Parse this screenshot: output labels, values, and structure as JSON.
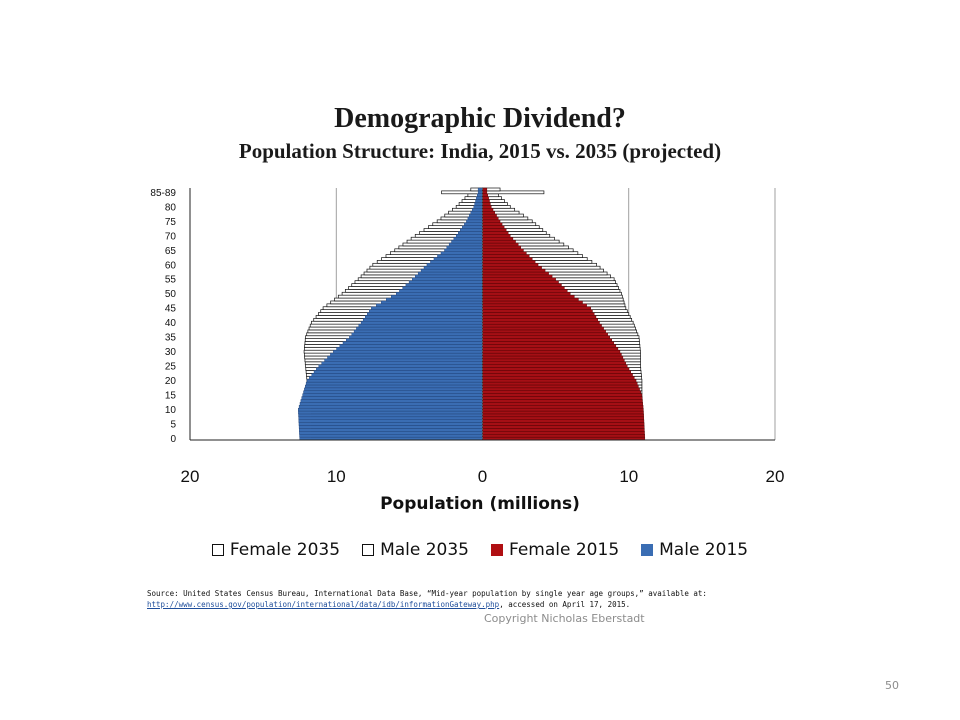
{
  "slide": {
    "title": "Demographic Dividend?",
    "subtitle": "Population Structure: India, 2015 vs. 2035 (projected)",
    "source_line1": "Source:  United States Census Bureau, International Data Base, “Mid-year population by single year age groups,” available at:",
    "source_link": "http://www.census.gov/population/international/data/idb/informationGateway.php",
    "source_line2_suffix": ", accessed on April 17, 2015.",
    "copyright": "Copyright Nicholas Eberstadt",
    "page_number": "50"
  },
  "chart_data": {
    "type": "bar",
    "orientation": "horizontal-pyramid",
    "title": "",
    "xlabel": "Population (millions)",
    "ylabel": "",
    "x_ticks": [
      "20",
      "10",
      "0",
      "10",
      "20"
    ],
    "x_tick_values": [
      -20,
      -10,
      0,
      10,
      20
    ],
    "xlim": [
      -20,
      20
    ],
    "y_tick_labels": [
      "0",
      "5",
      "10",
      "15",
      "20",
      "25",
      "30",
      "35",
      "40",
      "45",
      "50",
      "55",
      "60",
      "65",
      "70",
      "75",
      "80",
      "85-89"
    ],
    "y_tick_ages": [
      0,
      5,
      10,
      15,
      20,
      25,
      30,
      35,
      40,
      45,
      50,
      55,
      60,
      65,
      70,
      75,
      80,
      85
    ],
    "grid": "vertical",
    "legend_position": "bottom",
    "colors": {
      "female_2015": "#a50f15",
      "male_2015": "#3a6db3",
      "outline_2035": "#111111",
      "fill_2035": "#ffffff",
      "axis": "#222222",
      "grid": "#888888"
    },
    "series": [
      {
        "name": "Female 2035",
        "side": "right",
        "age_nodes": [
          0,
          10,
          20,
          25,
          30,
          35,
          40,
          45,
          50,
          55,
          60,
          65,
          70,
          75,
          80,
          84,
          85,
          86
        ],
        "value_nodes": [
          10.9,
          10.9,
          10.9,
          10.8,
          10.8,
          10.7,
          10.3,
          9.8,
          9.5,
          9.0,
          7.8,
          6.2,
          4.6,
          3.4,
          1.9,
          1.1,
          4.2,
          1.2
        ]
      },
      {
        "name": "Male 2035",
        "side": "left",
        "age_nodes": [
          0,
          10,
          20,
          25,
          30,
          35,
          40,
          45,
          50,
          55,
          60,
          65,
          70,
          75,
          80,
          84,
          85,
          86
        ],
        "value_nodes": [
          11.7,
          11.7,
          12.0,
          12.1,
          12.2,
          12.1,
          11.7,
          10.9,
          9.6,
          8.5,
          7.5,
          6.0,
          4.6,
          3.1,
          1.8,
          1.0,
          2.8,
          0.8
        ]
      },
      {
        "name": "Female 2015",
        "side": "right",
        "age_nodes": [
          0,
          10,
          15,
          20,
          25,
          30,
          35,
          40,
          45,
          50,
          55,
          60,
          65,
          70,
          75,
          80,
          85
        ],
        "value_nodes": [
          11.1,
          11.0,
          10.9,
          10.5,
          9.9,
          9.4,
          8.7,
          8.0,
          7.4,
          6.0,
          5.0,
          3.8,
          2.8,
          1.9,
          1.2,
          0.6,
          0.3
        ]
      },
      {
        "name": "Male 2015",
        "side": "left",
        "age_nodes": [
          0,
          10,
          15,
          20,
          25,
          30,
          35,
          40,
          45,
          50,
          55,
          60,
          65,
          70,
          75,
          80,
          85
        ],
        "value_nodes": [
          12.5,
          12.6,
          12.3,
          12.0,
          11.2,
          10.2,
          9.1,
          8.3,
          7.6,
          5.9,
          4.8,
          3.8,
          2.6,
          1.8,
          1.1,
          0.6,
          0.3
        ]
      }
    ]
  }
}
